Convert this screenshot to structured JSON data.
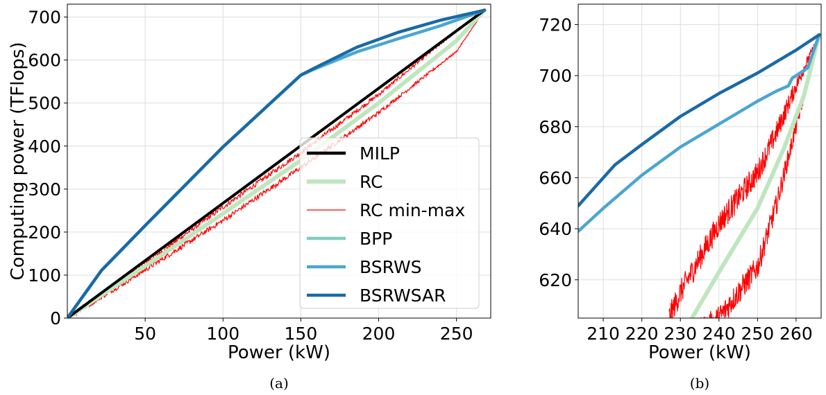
{
  "chart_data": [
    {
      "type": "line",
      "xlabel": "Power (kW)",
      "ylabel": "Computing power (TFlops)",
      "xlim": [
        0,
        272
      ],
      "ylim": [
        0,
        730
      ],
      "xticks": [
        50,
        100,
        150,
        200,
        250
      ],
      "yticks": [
        0,
        100,
        200,
        300,
        400,
        500,
        600,
        700
      ],
      "grid": true,
      "legend": "center-right",
      "caption": "(a)",
      "series": [
        {
          "name": "MILP",
          "color": "#000000",
          "x": [
            0,
            268
          ],
          "y": [
            0,
            716
          ]
        },
        {
          "name": "RC",
          "color": "#bfe6bf",
          "x": [
            0,
            50,
            100,
            150,
            200,
            250,
            268
          ],
          "y": [
            0,
            121,
            243,
            367,
            500,
            645,
            716
          ]
        },
        {
          "name": "RC min-max",
          "color": "#ff0000",
          "role": "band",
          "x": [
            0,
            50,
            100,
            150,
            200,
            250,
            268
          ],
          "upper": [
            0,
            128,
            258,
            385,
            520,
            668,
            716
          ],
          "lower": [
            0,
            112,
            227,
            350,
            478,
            620,
            716
          ]
        },
        {
          "name": "BPP",
          "color": "#7fcdbb",
          "x": [
            0,
            22,
            50,
            100,
            150,
            158,
            186,
            213,
            240,
            268
          ],
          "y": [
            0,
            111,
            215,
            398,
            565,
            578,
            619,
            650,
            680,
            716
          ]
        },
        {
          "name": "BSRWS",
          "color": "#4ba6d1",
          "x": [
            0,
            22,
            50,
            100,
            150,
            158,
            186,
            213,
            240,
            268
          ],
          "y": [
            0,
            111,
            215,
            398,
            565,
            578,
            619,
            650,
            680,
            716
          ]
        },
        {
          "name": "BSRWSAR",
          "color": "#1a6aa6",
          "x": [
            0,
            22,
            50,
            100,
            150,
            158,
            186,
            213,
            240,
            268
          ],
          "y": [
            0,
            111,
            215,
            398,
            565,
            580,
            630,
            665,
            693,
            716
          ]
        }
      ]
    },
    {
      "type": "line",
      "xlabel": "Power (kW)",
      "ylabel": "",
      "xlim": [
        203.5,
        266.5
      ],
      "ylim": [
        605,
        728
      ],
      "xticks": [
        210,
        220,
        230,
        240,
        250,
        260
      ],
      "yticks": [
        620,
        640,
        660,
        680,
        700,
        720
      ],
      "grid": true,
      "caption": "(b)",
      "series": [
        {
          "name": "RC",
          "color": "#bfe6bf",
          "x": [
            233,
            240,
            250,
            257,
            262,
            266
          ],
          "y": [
            605,
            623,
            648,
            672,
            692,
            716
          ]
        },
        {
          "name": "RC min-max",
          "color": "#ff0000",
          "role": "band",
          "x": [
            227,
            230,
            240,
            250,
            255,
            260,
            266
          ],
          "upper": [
            605,
            615,
            642,
            662,
            678,
            696,
            716
          ],
          "lower": [
            588,
            595,
            605,
            625,
            650,
            680,
            716
          ]
        },
        {
          "name": "BSRWS",
          "color": "#4ba6d1",
          "x": [
            203.5,
            210,
            220,
            230,
            240,
            250,
            255,
            258,
            259,
            260,
            263,
            266
          ],
          "y": [
            639,
            648,
            661,
            672,
            681,
            690,
            694,
            696,
            699,
            700,
            703,
            716
          ]
        },
        {
          "name": "BSRWSAR",
          "color": "#1a6aa6",
          "x": [
            203.5,
            213,
            220,
            230,
            240,
            250,
            260,
            266
          ],
          "y": [
            649,
            665,
            673,
            684,
            693,
            701,
            710,
            716
          ]
        }
      ]
    }
  ]
}
